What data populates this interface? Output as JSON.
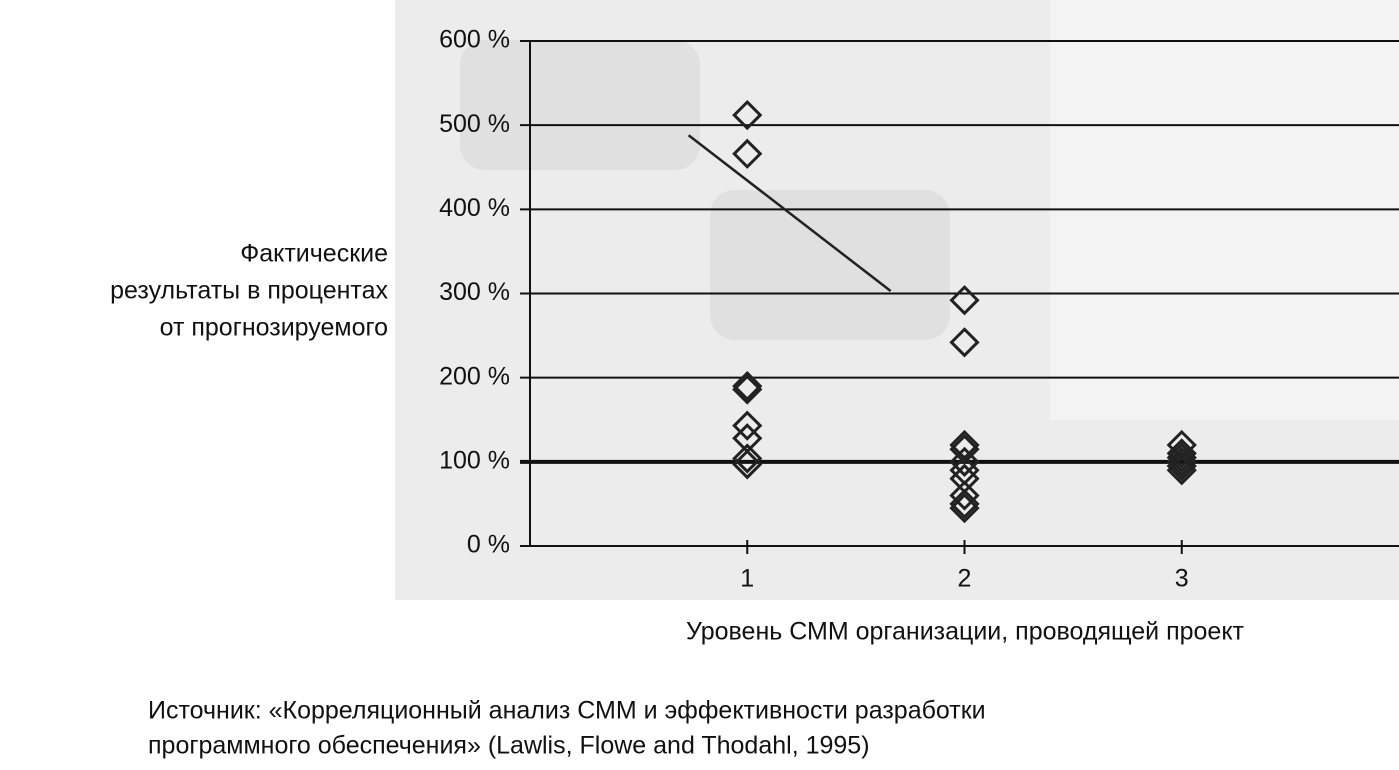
{
  "chart_data": {
    "type": "scatter",
    "ylabel": [
      "Фактические",
      "результаты в процентах",
      "от прогнозируемого"
    ],
    "xlabel": "Уровень СММ организации, проводящей проект",
    "source": [
      "Источник: «Корреляционный анализ СММ и эффективности разработки",
      "программного обеспечения» (Lawlis, Flowe and Thodahl, 1995)"
    ],
    "xlim": [
      0,
      4
    ],
    "xticks": [
      1,
      2,
      3
    ],
    "ylim": [
      0,
      600
    ],
    "yticks": [
      {
        "value": 0,
        "label": "0 %"
      },
      {
        "value": 100,
        "label": "100 %"
      },
      {
        "value": 200,
        "label": "200 %"
      },
      {
        "value": 300,
        "label": "300 %"
      },
      {
        "value": 400,
        "label": "400 %"
      },
      {
        "value": 500,
        "label": "500 %"
      },
      {
        "value": 600,
        "label": "600 %"
      }
    ],
    "grid": true,
    "reference_line": 100,
    "color": "#222222",
    "points": {
      "x": [
        1,
        1,
        1,
        1,
        1,
        1,
        1,
        1,
        2,
        2,
        2,
        2,
        2,
        2,
        2,
        2,
        2,
        2,
        3,
        3,
        3,
        3,
        3,
        3
      ],
      "y": [
        512,
        466,
        190,
        186,
        143,
        128,
        104,
        97,
        292,
        242,
        120,
        115,
        100,
        90,
        80,
        60,
        50,
        45,
        120,
        110,
        105,
        100,
        95,
        90
      ]
    },
    "trend": {
      "x": [
        0.73,
        1.66
      ],
      "y": [
        488,
        303
      ]
    }
  }
}
